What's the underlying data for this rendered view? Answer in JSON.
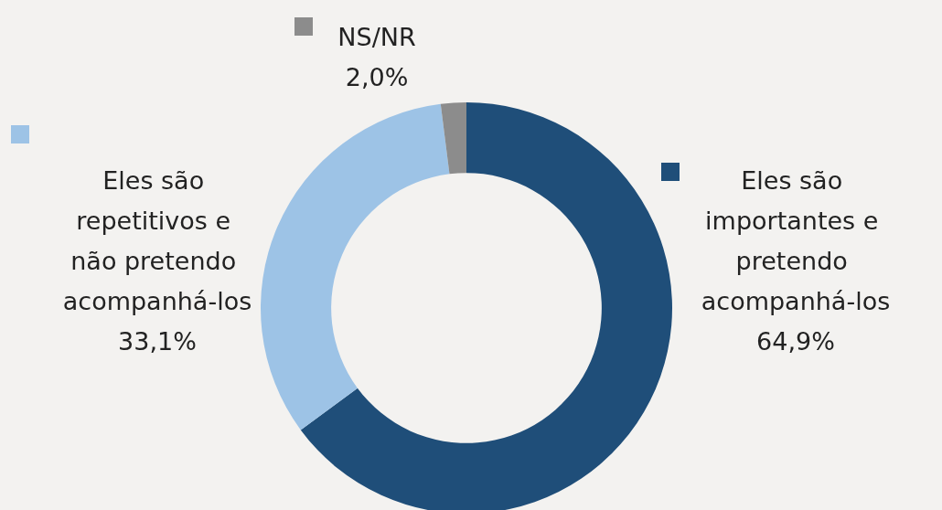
{
  "chart_data": {
    "type": "donut",
    "categories": [
      "Eles são importantes e pretendo acompanhá-los",
      "Eles são repetitivos e não pretendo acompanhá-los",
      "NS/NR"
    ],
    "values": [
      64.9,
      33.1,
      2.0
    ],
    "colors": [
      "#1f4e79",
      "#9dc3e6",
      "#8c8c8c"
    ],
    "value_labels": [
      "64,9%",
      "33,1%",
      "2,0%"
    ]
  }
}
